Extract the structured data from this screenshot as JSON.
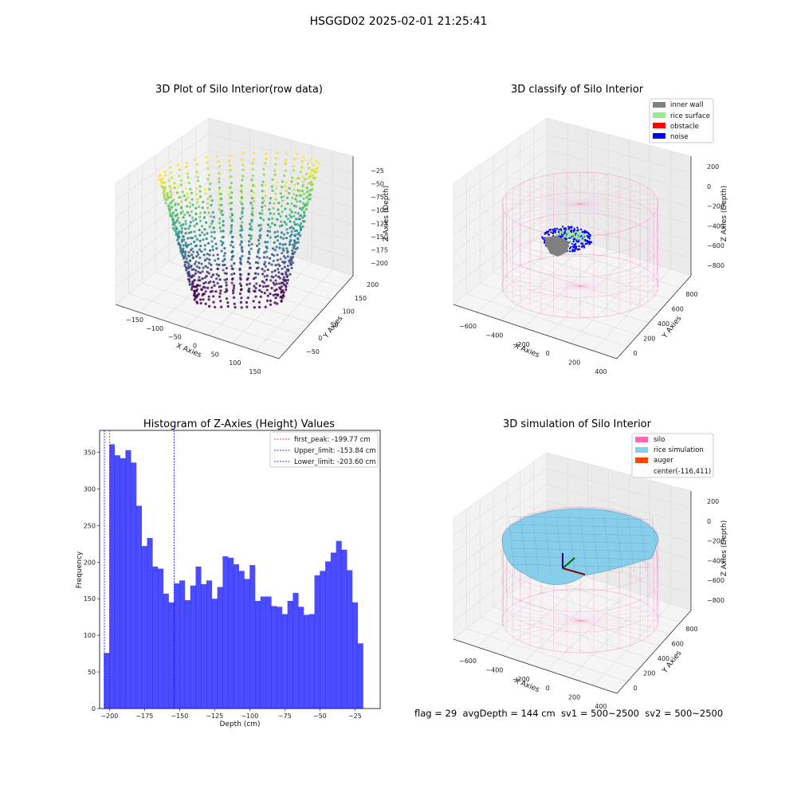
{
  "suptitle": "HSGGD02 2025-02-01 21:25:41",
  "footer": "flag = 29  avgDepth = 144 cm  sv1 = 500~2500  sv2 = 500~2500",
  "chart_data": [
    {
      "type": "scatter",
      "title": "3D Plot of Silo Interior(row data)",
      "xlabel": "X Axies",
      "ylabel": "Y Axies",
      "zlabel": "Z Axies (Depth)",
      "x_ticks": [
        "−150",
        "−100",
        "−50",
        "0",
        "50",
        "100",
        "150"
      ],
      "y_ticks": [
        "−50",
        "0",
        "50",
        "100",
        "150",
        "200"
      ],
      "z_ticks": [
        "−25",
        "−50",
        "−75",
        "−100",
        "−125",
        "−150",
        "−175",
        "−200"
      ],
      "colormap": "viridis"
    },
    {
      "type": "scatter",
      "title": "3D classify of Silo Interior",
      "xlabel": "X Axies",
      "ylabel": "Y Axies",
      "zlabel": "Z Axies (Depth)",
      "x_ticks": [
        "−600",
        "−400",
        "−200",
        "0",
        "200",
        "400"
      ],
      "y_ticks": [
        "0",
        "200",
        "400",
        "600",
        "800"
      ],
      "z_ticks": [
        "200",
        "0",
        "−200",
        "−400",
        "−600",
        "−800"
      ],
      "legend": [
        {
          "label": "inner wall",
          "color": "#808080"
        },
        {
          "label": "rice surface",
          "color": "#90ee90"
        },
        {
          "label": "obstacle",
          "color": "#ff0000"
        },
        {
          "label": "noise",
          "color": "#0000ff"
        }
      ]
    },
    {
      "type": "bar",
      "title": "Histogram of Z-Axies (Height) Values",
      "xlabel": "Depth (cm)",
      "ylabel": "Frequency",
      "xlim": [
        -207,
        -7
      ],
      "ylim": [
        0,
        380
      ],
      "x_ticks": [
        -200,
        -175,
        -150,
        -125,
        -100,
        -75,
        -50,
        -25
      ],
      "y_ticks": [
        0,
        50,
        100,
        150,
        200,
        250,
        300,
        350
      ],
      "bin_start": -204.0,
      "bin_width": 3.85,
      "values": [
        76,
        361,
        346,
        342,
        353,
        336,
        277,
        222,
        233,
        194,
        191,
        157,
        145,
        171,
        175,
        148,
        168,
        194,
        170,
        175,
        150,
        166,
        208,
        206,
        197,
        188,
        177,
        196,
        147,
        153,
        153,
        140,
        139,
        129,
        147,
        158,
        139,
        128,
        129,
        182,
        188,
        201,
        213,
        229,
        217,
        189,
        145,
        89
      ],
      "bar_color": "#0000ff",
      "vlines": [
        {
          "label": "first_peak: -199.77 cm",
          "x": -199.77,
          "color": "#ff0000"
        },
        {
          "label": "Upper_limit: -153.84 cm",
          "x": -153.84,
          "color": "#0000ff"
        },
        {
          "label": "Lower_limit: -203.60 cm",
          "x": -203.6,
          "color": "#0000ff"
        }
      ]
    },
    {
      "type": "surface",
      "title": "3D simulation of Silo Interior",
      "xlabel": "X Axies",
      "ylabel": "Y Axies",
      "zlabel": "Z Axies (Depth)",
      "x_ticks": [
        "−600",
        "−400",
        "−200",
        "0",
        "200",
        "400"
      ],
      "y_ticks": [
        "0",
        "200",
        "400",
        "600",
        "800"
      ],
      "z_ticks": [
        "200",
        "0",
        "−200",
        "−400",
        "−600",
        "−800"
      ],
      "legend": [
        {
          "label": "silo",
          "color": "#ff69b4"
        },
        {
          "label": "rice simulation",
          "color": "#87ceeb"
        },
        {
          "label": "auger",
          "color": "#ff4500"
        },
        {
          "label": "center(-116,411)",
          "color": ""
        }
      ]
    }
  ]
}
